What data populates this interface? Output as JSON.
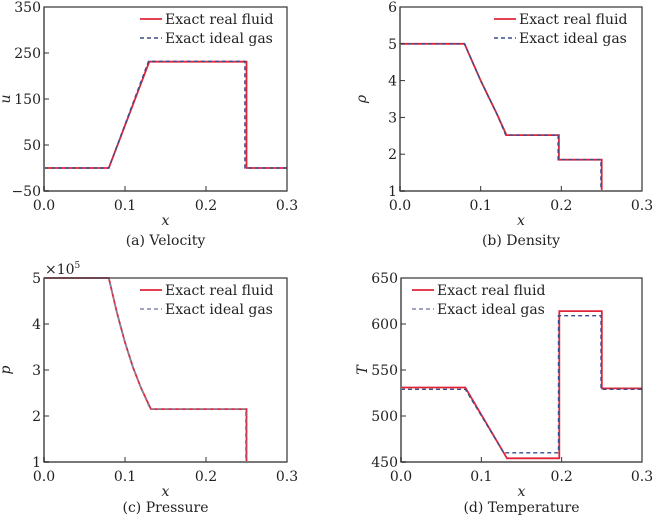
{
  "legend": {
    "real": "Exact real fluid",
    "ideal": "Exact ideal gas"
  },
  "colors": {
    "real": "#e0253a",
    "ideal": "#3a4f8f",
    "ideal_alt": "#7f8aa8",
    "axis": "#777777"
  },
  "chart_data": [
    {
      "type": "line",
      "panel": "a",
      "caption": "(a) Velocity",
      "xlabel": "x",
      "ylabel": "u",
      "xlim": [
        0.0,
        0.3
      ],
      "ylim": [
        -50,
        350
      ],
      "xticks": [
        "0.0",
        "0.1",
        "0.2",
        "0.3"
      ],
      "xtick_values": [
        0.0,
        0.1,
        0.2,
        0.3
      ],
      "yticks": [
        "350",
        "250",
        "150",
        "50",
        "−50"
      ],
      "ytick_values": [
        350,
        250,
        150,
        50,
        -50
      ],
      "multiplier": "",
      "legend_position": "top-right",
      "series": [
        {
          "name": "Exact real fluid",
          "style": "solid",
          "x": [
            0.0,
            0.08,
            0.13,
            0.25,
            0.25,
            0.3
          ],
          "y": [
            0,
            0,
            231,
            231,
            0,
            0
          ]
        },
        {
          "name": "Exact ideal gas",
          "style": "dashed",
          "x": [
            0.0,
            0.08,
            0.129,
            0.248,
            0.248,
            0.3
          ],
          "y": [
            0,
            0,
            232,
            232,
            0,
            0
          ]
        }
      ]
    },
    {
      "type": "line",
      "panel": "b",
      "caption": "(b) Density",
      "xlabel": "x",
      "ylabel": "ρ",
      "xlim": [
        0.0,
        0.3
      ],
      "ylim": [
        1,
        6
      ],
      "xticks": [
        "0.0",
        "0.1",
        "0.2",
        "0.3"
      ],
      "xtick_values": [
        0.0,
        0.1,
        0.2,
        0.3
      ],
      "yticks": [
        "6",
        "5",
        "4",
        "3",
        "2",
        "1"
      ],
      "ytick_values": [
        6,
        5,
        4,
        3,
        2,
        1
      ],
      "multiplier": "",
      "legend_position": "top-right",
      "series": [
        {
          "name": "Exact real fluid",
          "style": "solid",
          "x": [
            0.0,
            0.08,
            0.09,
            0.1,
            0.11,
            0.12,
            0.132,
            0.197,
            0.197,
            0.25,
            0.25,
            0.3
          ],
          "y": [
            5.0,
            5.0,
            4.5,
            4.0,
            3.55,
            3.1,
            2.52,
            2.52,
            1.85,
            1.85,
            1.0,
            1.0
          ]
        },
        {
          "name": "Exact ideal gas",
          "style": "dashed",
          "x": [
            0.0,
            0.08,
            0.09,
            0.1,
            0.11,
            0.12,
            0.131,
            0.196,
            0.196,
            0.249,
            0.249,
            0.3
          ],
          "y": [
            5.0,
            5.0,
            4.5,
            4.0,
            3.55,
            3.1,
            2.52,
            2.52,
            1.85,
            1.85,
            1.0,
            1.0
          ]
        }
      ]
    },
    {
      "type": "line",
      "panel": "c",
      "caption": "(c) Pressure",
      "xlabel": "x",
      "ylabel": "p",
      "xlim": [
        0.0,
        0.3
      ],
      "ylim": [
        1,
        5
      ],
      "xticks": [
        "0.0",
        "0.1",
        "0.2",
        "0.3"
      ],
      "xtick_values": [
        0.0,
        0.1,
        0.2,
        0.3
      ],
      "yticks": [
        "5",
        "4",
        "3",
        "2",
        "1"
      ],
      "ytick_values": [
        5,
        4,
        3,
        2,
        1
      ],
      "multiplier": "×10",
      "multiplier_exp": "5",
      "legend_position": "top-right",
      "series": [
        {
          "name": "Exact real fluid",
          "style": "solid",
          "x": [
            0.0,
            0.08,
            0.09,
            0.1,
            0.11,
            0.12,
            0.132,
            0.25,
            0.25,
            0.3
          ],
          "y": [
            5.0,
            5.0,
            4.25,
            3.6,
            3.05,
            2.6,
            2.15,
            2.15,
            1.0,
            1.0
          ]
        },
        {
          "name": "Exact ideal gas",
          "style": "dashed",
          "x": [
            0.0,
            0.08,
            0.09,
            0.1,
            0.11,
            0.12,
            0.131,
            0.249,
            0.249,
            0.3
          ],
          "y": [
            5.0,
            5.0,
            4.25,
            3.6,
            3.05,
            2.6,
            2.15,
            2.15,
            1.0,
            1.0
          ]
        }
      ]
    },
    {
      "type": "line",
      "panel": "d",
      "caption": "(d) Temperature",
      "xlabel": "x",
      "ylabel": "T",
      "xlim": [
        0.0,
        0.3
      ],
      "ylim": [
        450,
        650
      ],
      "xticks": [
        "0.0",
        "0.1",
        "0.2",
        "0.3"
      ],
      "xtick_values": [
        0.0,
        0.1,
        0.2,
        0.3
      ],
      "yticks": [
        "650",
        "600",
        "550",
        "500",
        "450"
      ],
      "ytick_values": [
        650,
        600,
        550,
        500,
        450
      ],
      "multiplier": "",
      "legend_position": "top-left",
      "series": [
        {
          "name": "Exact real fluid",
          "style": "solid",
          "x": [
            0.0,
            0.08,
            0.132,
            0.197,
            0.197,
            0.25,
            0.25,
            0.3
          ],
          "y": [
            531,
            531,
            454,
            454,
            614,
            614,
            530,
            530
          ]
        },
        {
          "name": "Exact ideal gas",
          "style": "dashed",
          "x": [
            0.0,
            0.08,
            0.128,
            0.196,
            0.196,
            0.249,
            0.249,
            0.3
          ],
          "y": [
            529,
            529,
            460,
            460,
            609,
            609,
            529,
            529
          ]
        }
      ]
    }
  ]
}
